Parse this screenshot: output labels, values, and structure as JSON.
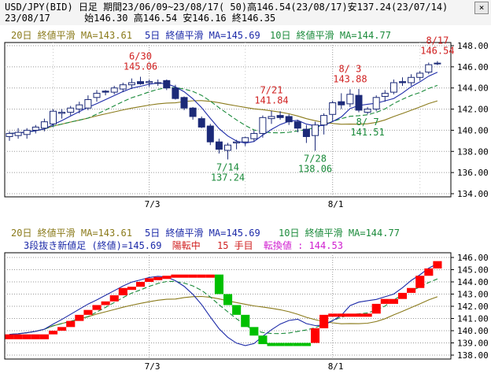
{
  "header": {
    "close_label": "×",
    "line1": "USD/JPY(BID) 日足 期間23/06/09~23/08/17( 50)高146.54(23/08/17)安137.24(23/07/14)",
    "line2": "23/08/17      始146.30 高146.54 安146.16 終146.35"
  },
  "top_panel": {
    "legend_ma20": "20日 終値平滑 MA=143.61",
    "legend_ma5": "5日 終値平滑 MA=145.69",
    "legend_ma10": "10日 終値平滑 MA=144.77",
    "y_ticks": [
      "148.00",
      "146.00",
      "144.00",
      "142.00",
      "140.00",
      "138.00",
      "136.00",
      "134.00"
    ],
    "x_ticks": [
      "7/3",
      "8/1"
    ],
    "annotations": [
      {
        "date": "6/30",
        "value": "145.06",
        "type": "high"
      },
      {
        "date": "7/14",
        "value": "137.24",
        "type": "low"
      },
      {
        "date": "7/21",
        "value": "141.84",
        "type": "high"
      },
      {
        "date": "7/28",
        "value": "138.06",
        "type": "low"
      },
      {
        "date": "8/ 3",
        "value": "143.88",
        "type": "high"
      },
      {
        "date": "8/ 7",
        "value": "141.51",
        "type": "low"
      },
      {
        "date": "8/17",
        "value": "146.54",
        "type": "high"
      }
    ]
  },
  "bottom_panel": {
    "legend_ma20": "20日 終値平滑 MA=143.61",
    "legend_ma5": "5日 終値平滑 MA=145.69",
    "legend_ma10": "10日 終値平滑 MA=144.77",
    "info_prefix": "3段抜き新値足 (終値)=145.69",
    "info_status": "陽転中",
    "info_count": "15 手目",
    "info_reversal": "転換値 : 144.53",
    "y_ticks": [
      "146.00",
      "145.00",
      "144.00",
      "143.00",
      "142.00",
      "141.00",
      "140.00",
      "139.00",
      "138.00"
    ],
    "x_ticks": [
      "7/3",
      "8/1"
    ]
  },
  "colors": {
    "up_candle": "#ffffff",
    "down_candle": "#1c2a78",
    "ma5": "#1c2aa8",
    "ma10": "#1a8a3a",
    "ma20": "#8a7a1a",
    "annotation_high": "#d02020",
    "annotation_low": "#1a8a3a",
    "kagi_up": "#ff0000",
    "kagi_down": "#00c000",
    "info_magenta": "#d020d0"
  },
  "chart_data": [
    {
      "type": "candlestick",
      "x": [
        "6/09",
        "6/12",
        "6/13",
        "6/14",
        "6/15",
        "6/16",
        "6/19",
        "6/20",
        "6/21",
        "6/22",
        "6/23",
        "6/26",
        "6/27",
        "6/28",
        "6/29",
        "6/30",
        "7/03",
        "7/04",
        "7/05",
        "7/06",
        "7/07",
        "7/10",
        "7/11",
        "7/12",
        "7/13",
        "7/14",
        "7/17",
        "7/18",
        "7/19",
        "7/20",
        "7/21",
        "7/24",
        "7/25",
        "7/26",
        "7/27",
        "7/28",
        "7/31",
        "8/01",
        "8/02",
        "8/03",
        "8/04",
        "8/07",
        "8/08",
        "8/09",
        "8/10",
        "8/11",
        "8/14",
        "8/15",
        "8/16",
        "8/17"
      ],
      "open": [
        139.4,
        139.5,
        139.6,
        140.0,
        140.2,
        140.6,
        141.6,
        141.7,
        142.0,
        142.1,
        143.1,
        143.7,
        143.6,
        143.9,
        144.3,
        144.6,
        144.5,
        144.5,
        144.7,
        144.0,
        143.1,
        142.1,
        141.1,
        140.4,
        138.9,
        138.1,
        138.8,
        138.9,
        139.2,
        139.7,
        141.1,
        141.4,
        141.3,
        140.8,
        140.1,
        139.5,
        140.5,
        141.5,
        142.7,
        142.5,
        143.3,
        141.7,
        142.0,
        143.2,
        143.6,
        144.6,
        144.5,
        145.0,
        145.5,
        146.3
      ],
      "high": [
        139.9,
        140.2,
        140.2,
        140.5,
        141.1,
        142.0,
        142.0,
        142.3,
        142.7,
        143.3,
        143.8,
        143.8,
        144.2,
        144.5,
        144.9,
        145.06,
        144.8,
        144.8,
        144.8,
        144.3,
        143.2,
        142.2,
        141.3,
        140.6,
        139.2,
        138.8,
        139.1,
        139.4,
        140.0,
        141.4,
        141.84,
        141.8,
        141.5,
        141.0,
        140.5,
        140.8,
        141.6,
        142.8,
        143.5,
        143.88,
        143.9,
        142.2,
        143.3,
        143.8,
        144.8,
        145.0,
        145.3,
        145.6,
        146.4,
        146.54
      ],
      "low": [
        139.0,
        139.2,
        139.2,
        139.7,
        139.9,
        140.3,
        141.1,
        141.4,
        141.6,
        141.9,
        142.7,
        143.3,
        143.4,
        143.6,
        143.9,
        144.3,
        144.1,
        144.2,
        143.8,
        142.9,
        141.9,
        141.0,
        140.2,
        138.6,
        137.8,
        137.24,
        138.2,
        138.5,
        138.9,
        139.3,
        140.6,
        141.0,
        140.5,
        139.8,
        138.8,
        138.06,
        139.6,
        140.8,
        142.0,
        142.2,
        141.7,
        141.51,
        141.8,
        142.7,
        143.4,
        144.2,
        144.2,
        144.7,
        145.3,
        146.16
      ],
      "close": [
        139.7,
        139.8,
        140.0,
        140.3,
        140.8,
        141.8,
        141.7,
        142.1,
        142.4,
        142.9,
        143.5,
        143.6,
        144.0,
        144.3,
        144.5,
        144.4,
        144.6,
        144.5,
        144.0,
        143.0,
        142.1,
        141.3,
        140.3,
        138.9,
        138.2,
        138.6,
        138.9,
        139.3,
        139.7,
        141.2,
        141.3,
        141.2,
        140.8,
        140.2,
        139.4,
        140.5,
        141.4,
        142.6,
        142.4,
        143.4,
        141.9,
        142.0,
        143.1,
        143.5,
        144.5,
        144.5,
        145.0,
        145.4,
        146.2,
        146.35
      ],
      "ma5_last": 145.69,
      "ma10_last": 144.77,
      "ma20_last": 143.61,
      "ylim": [
        134,
        148
      ],
      "x_tick_labels": [
        "7/3",
        "8/1"
      ],
      "annotations": [
        "6/30 145.06",
        "7/14 137.24",
        "7/21 141.84",
        "7/28 138.06",
        "8/3 143.88",
        "8/7 141.51",
        "8/17 146.54"
      ]
    },
    {
      "type": "bar",
      "subtype": "three-line-break",
      "bricks": [
        {
          "dir": "up",
          "low": 139.3,
          "high": 139.7
        },
        {
          "dir": "up",
          "low": 139.3,
          "high": 139.7
        },
        {
          "dir": "up",
          "low": 139.3,
          "high": 139.7
        },
        {
          "dir": "up",
          "low": 139.3,
          "high": 139.7
        },
        {
          "dir": "up",
          "low": 139.3,
          "high": 139.7
        },
        {
          "dir": "up",
          "low": 139.7,
          "high": 140.0
        },
        {
          "dir": "up",
          "low": 140.0,
          "high": 140.3
        },
        {
          "dir": "up",
          "low": 140.3,
          "high": 140.8
        },
        {
          "dir": "up",
          "low": 140.8,
          "high": 141.3
        },
        {
          "dir": "up",
          "low": 141.3,
          "high": 141.7
        },
        {
          "dir": "up",
          "low": 141.7,
          "high": 142.1
        },
        {
          "dir": "up",
          "low": 142.1,
          "high": 142.4
        },
        {
          "dir": "up",
          "low": 142.4,
          "high": 142.9
        },
        {
          "dir": "up",
          "low": 142.9,
          "high": 143.5
        },
        {
          "dir": "up",
          "low": 143.5,
          "high": 143.6
        },
        {
          "dir": "up",
          "low": 143.6,
          "high": 144.0
        },
        {
          "dir": "up",
          "low": 144.0,
          "high": 144.3
        },
        {
          "dir": "up",
          "low": 144.3,
          "high": 144.4
        },
        {
          "dir": "up",
          "low": 144.4,
          "high": 144.5
        },
        {
          "dir": "up",
          "low": 144.5,
          "high": 144.6
        },
        {
          "dir": "up",
          "low": 144.5,
          "high": 144.6
        },
        {
          "dir": "up",
          "low": 144.5,
          "high": 144.6
        },
        {
          "dir": "up",
          "low": 144.5,
          "high": 144.6
        },
        {
          "dir": "up",
          "low": 144.5,
          "high": 144.6
        },
        {
          "dir": "down",
          "low": 143.0,
          "high": 144.6
        },
        {
          "dir": "down",
          "low": 142.1,
          "high": 143.0
        },
        {
          "dir": "down",
          "low": 141.3,
          "high": 142.1
        },
        {
          "dir": "down",
          "low": 140.3,
          "high": 141.3
        },
        {
          "dir": "down",
          "low": 139.6,
          "high": 140.3
        },
        {
          "dir": "down",
          "low": 138.9,
          "high": 139.6
        },
        {
          "dir": "down",
          "low": 138.9,
          "high": 139.0
        },
        {
          "dir": "down",
          "low": 138.9,
          "high": 139.0
        },
        {
          "dir": "down",
          "low": 138.9,
          "high": 139.0
        },
        {
          "dir": "down",
          "low": 138.9,
          "high": 139.0
        },
        {
          "dir": "down",
          "low": 138.9,
          "high": 139.0
        },
        {
          "dir": "up",
          "low": 139.0,
          "high": 140.2
        },
        {
          "dir": "up",
          "low": 140.2,
          "high": 141.3
        },
        {
          "dir": "up",
          "low": 141.3,
          "high": 141.4
        },
        {
          "dir": "up",
          "low": 141.3,
          "high": 141.4
        },
        {
          "dir": "up",
          "low": 141.3,
          "high": 141.4
        },
        {
          "dir": "up",
          "low": 141.3,
          "high": 141.4
        },
        {
          "dir": "up",
          "low": 141.3,
          "high": 141.4
        },
        {
          "dir": "up",
          "low": 141.4,
          "high": 142.2
        },
        {
          "dir": "up",
          "low": 142.2,
          "high": 142.6
        },
        {
          "dir": "up",
          "low": 142.2,
          "high": 142.6
        },
        {
          "dir": "up",
          "low": 142.6,
          "high": 143.1
        },
        {
          "dir": "up",
          "low": 143.1,
          "high": 143.5
        },
        {
          "dir": "up",
          "low": 143.5,
          "high": 144.5
        },
        {
          "dir": "up",
          "low": 144.5,
          "high": 145.1
        },
        {
          "dir": "up",
          "low": 145.1,
          "high": 145.7
        }
      ],
      "ylim": [
        138,
        146.5
      ],
      "x_tick_labels": [
        "7/3",
        "8/1"
      ]
    }
  ]
}
